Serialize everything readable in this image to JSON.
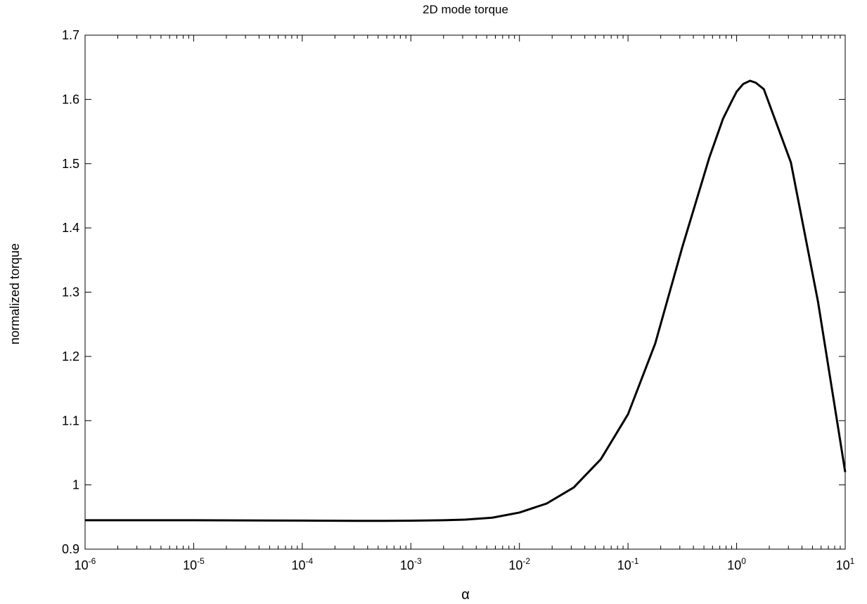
{
  "chart_data": {
    "type": "line",
    "title": "2D mode torque",
    "xlabel": "α",
    "ylabel": "normalized torque",
    "xscale": "log",
    "xlim": [
      1e-06,
      10
    ],
    "ylim": [
      0.9,
      1.7
    ],
    "grid": false,
    "legend": "none",
    "x_tick_labels": [
      {
        "base": "10",
        "exp": "-6"
      },
      {
        "base": "10",
        "exp": "-5"
      },
      {
        "base": "10",
        "exp": "-4"
      },
      {
        "base": "10",
        "exp": "-3"
      },
      {
        "base": "10",
        "exp": "-2"
      },
      {
        "base": "10",
        "exp": "-1"
      },
      {
        "base": "10",
        "exp": "0"
      },
      {
        "base": "10",
        "exp": "1"
      }
    ],
    "y_tick_labels": [
      "0.9",
      "1",
      "1.1",
      "1.2",
      "1.3",
      "1.4",
      "1.5",
      "1.6",
      "1.7"
    ],
    "series": [
      {
        "color": "#000000",
        "x": [
          1e-06,
          1e-05,
          0.0001,
          0.000316,
          0.000562,
          0.001,
          0.00178,
          0.00316,
          0.00562,
          0.01,
          0.0178,
          0.0316,
          0.0562,
          0.1,
          0.178,
          0.316,
          0.562,
          0.75,
          0.9,
          1.0,
          1.15,
          1.33,
          1.5,
          1.78,
          3.16,
          5.62,
          10
        ],
        "y": [
          0.945,
          0.945,
          0.9445,
          0.944,
          0.944,
          0.9443,
          0.9448,
          0.946,
          0.949,
          0.957,
          0.971,
          0.996,
          1.04,
          1.11,
          1.22,
          1.37,
          1.51,
          1.57,
          1.597,
          1.612,
          1.624,
          1.629,
          1.626,
          1.616,
          1.502,
          1.285,
          1.02
        ]
      }
    ]
  }
}
